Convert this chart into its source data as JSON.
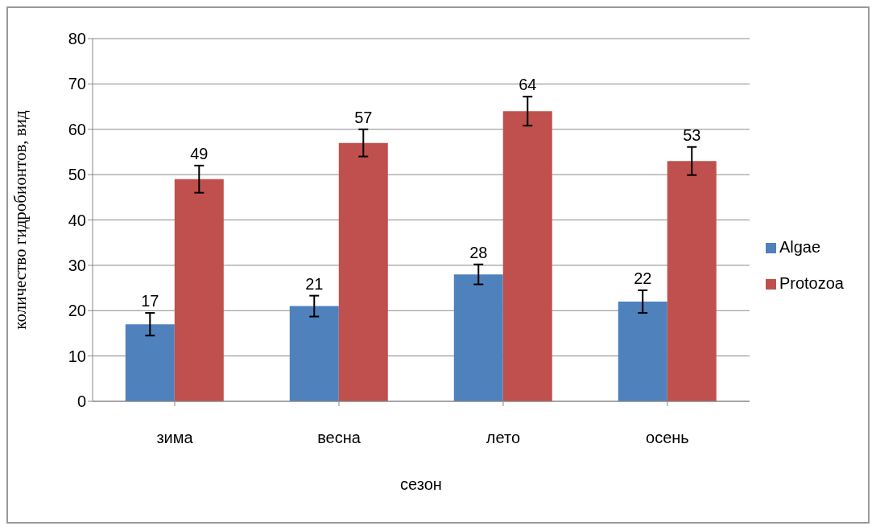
{
  "chart_data": {
    "type": "bar",
    "xlabel": "сезон",
    "ylabel": "количество гидробионтов, вид",
    "categories": [
      "зима",
      "весна",
      "лето",
      "осень"
    ],
    "series": [
      {
        "name": "Algae",
        "color": "#4f81bd",
        "values": [
          17,
          21,
          28,
          22
        ],
        "errors": [
          2.5,
          2.3,
          2.2,
          2.5
        ]
      },
      {
        "name": "Protozoa",
        "color": "#c0504d",
        "values": [
          49,
          57,
          64,
          53
        ],
        "errors": [
          3,
          3,
          3.2,
          3.1
        ]
      }
    ],
    "ylim": [
      0,
      80
    ],
    "yticks": [
      0,
      10,
      20,
      30,
      40,
      50,
      60,
      70,
      80
    ],
    "grid": "y",
    "legend": "right",
    "data_labels": true
  }
}
